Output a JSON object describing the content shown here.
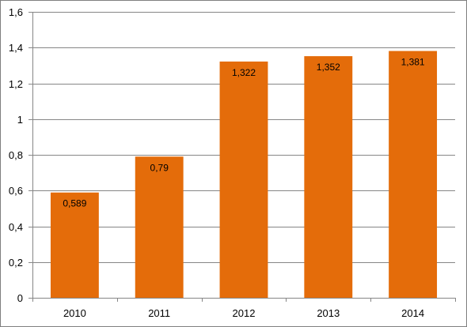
{
  "chart_data": {
    "type": "bar",
    "categories": [
      "2010",
      "2011",
      "2012",
      "2013",
      "2014"
    ],
    "values": [
      0.589,
      0.79,
      1.322,
      1.352,
      1.381
    ],
    "data_labels": [
      "0,589",
      "0,79",
      "1,322",
      "1,352",
      "1,381"
    ],
    "y_ticks": [
      0,
      0.2,
      0.4,
      0.6,
      0.8,
      1,
      1.2,
      1.4,
      1.6
    ],
    "y_tick_labels": [
      "0",
      "0,2",
      "0,4",
      "0,6",
      "0,8",
      "1",
      "1,2",
      "1,4",
      "1,6"
    ],
    "ylim": [
      0,
      1.6
    ],
    "grid": true,
    "legend": "none",
    "bar_color": "#E46C0A",
    "grid_color": "#868686",
    "axis_color": "#868686",
    "title": "",
    "xlabel": "",
    "ylabel": ""
  }
}
